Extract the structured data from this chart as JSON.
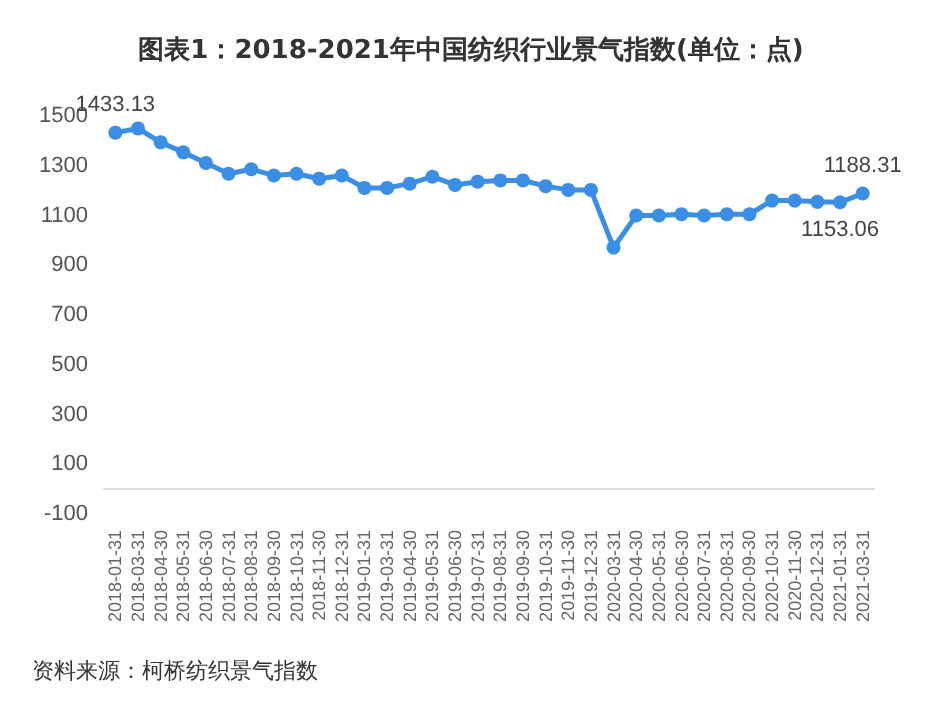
{
  "chart_data": {
    "type": "line",
    "title": "图表1：2018-2021年中国纺织行业景气指数(单位：点)",
    "categories": [
      "2018-01-31",
      "2018-03-31",
      "2018-04-30",
      "2018-05-31",
      "2018-06-30",
      "2018-07-31",
      "2018-08-31",
      "2018-09-30",
      "2018-10-31",
      "2018-11-30",
      "2018-12-31",
      "2019-01-31",
      "2019-03-31",
      "2019-04-30",
      "2019-05-31",
      "2019-06-30",
      "2019-07-31",
      "2019-08-31",
      "2019-09-30",
      "2019-10-31",
      "2019-11-30",
      "2019-12-31",
      "2020-03-31",
      "2020-04-30",
      "2020-05-31",
      "2020-06-30",
      "2020-07-31",
      "2020-08-31",
      "2020-09-30",
      "2020-10-31",
      "2020-11-30",
      "2020-12-31",
      "2021-01-31",
      "2021-03-31"
    ],
    "series": [
      {
        "color": "#3a8ee6",
        "values": [
          1433.13,
          1450,
          1394,
          1354,
          1311,
          1268,
          1286,
          1261,
          1268,
          1248,
          1261,
          1211,
          1211,
          1228,
          1256,
          1223,
          1236,
          1241,
          1241,
          1218,
          1203,
          1203,
          971,
          1100,
          1100,
          1105,
          1100,
          1105,
          1105,
          1160,
          1160,
          1155,
          1153.06,
          1188.31
        ],
        "value_labels": [
          "1433.13",
          null,
          null,
          null,
          null,
          null,
          null,
          null,
          null,
          null,
          null,
          null,
          null,
          null,
          null,
          null,
          null,
          null,
          null,
          null,
          null,
          null,
          null,
          null,
          null,
          null,
          null,
          null,
          null,
          null,
          null,
          null,
          "1153.06",
          "1188.31"
        ]
      }
    ],
    "ylim": [
      -100,
      1500
    ],
    "yticks": [
      -100,
      100,
      300,
      500,
      700,
      900,
      1100,
      1300,
      1500
    ],
    "grid": false,
    "marker": "circle",
    "line_style": "solid",
    "annotations": [
      "资料来源：柯桥纺织景气指数"
    ]
  }
}
